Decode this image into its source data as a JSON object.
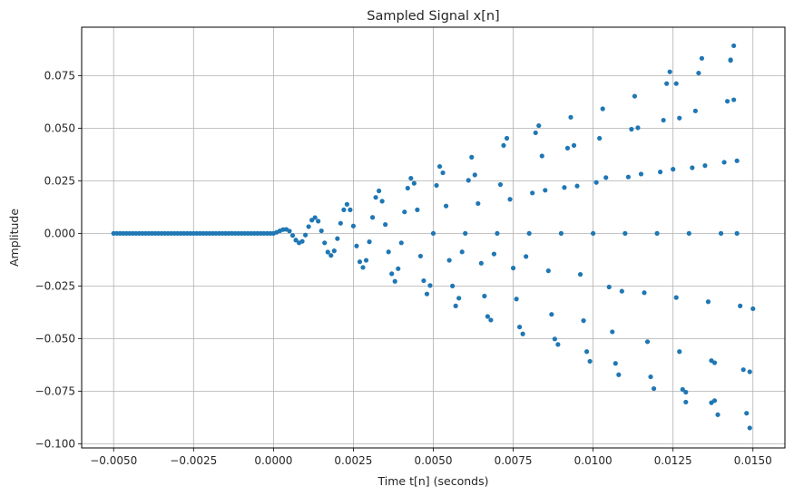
{
  "chart_data": {
    "type": "scatter",
    "title": "Sampled Signal x[n]",
    "xlabel": "Time t[n] (seconds)",
    "ylabel": "Amplitude",
    "xlim": [
      -0.006,
      0.016
    ],
    "ylim": [
      -0.102,
      0.098
    ],
    "grid": true,
    "x_ticks": [
      -0.005,
      -0.0025,
      0.0,
      0.0025,
      0.005,
      0.0075,
      0.01,
      0.0125,
      0.015
    ],
    "x_tick_labels": [
      "−0.0050",
      "−0.0025",
      "0.0000",
      "0.0025",
      "0.0050",
      "0.0075",
      "0.0100",
      "0.0125",
      "0.0150"
    ],
    "y_ticks": [
      -0.1,
      -0.075,
      -0.05,
      -0.025,
      0.0,
      0.025,
      0.05,
      0.075
    ],
    "y_tick_labels": [
      "−0.100",
      "−0.075",
      "−0.050",
      "−0.025",
      "0.000",
      "0.025",
      "0.050",
      "0.075"
    ],
    "marker_color": "#1f77b4",
    "series": [
      {
        "points": [
          [
            -0.005,
            0.0
          ],
          [
            -0.0049,
            0.0
          ],
          [
            -0.0048,
            0.0
          ],
          [
            -0.0047,
            0.0
          ],
          [
            -0.0046,
            0.0
          ],
          [
            -0.0045,
            0.0
          ],
          [
            -0.0044,
            0.0
          ],
          [
            -0.0043,
            0.0
          ],
          [
            -0.0042,
            0.0
          ],
          [
            -0.0041,
            0.0
          ],
          [
            -0.004,
            0.0
          ],
          [
            -0.0039,
            0.0
          ],
          [
            -0.0038,
            0.0
          ],
          [
            -0.0037,
            0.0
          ],
          [
            -0.0036,
            0.0
          ],
          [
            -0.0035,
            0.0
          ],
          [
            -0.0034,
            0.0
          ],
          [
            -0.0033,
            0.0
          ],
          [
            -0.0032,
            0.0
          ],
          [
            -0.0031,
            0.0
          ],
          [
            -0.003,
            0.0
          ],
          [
            -0.0029,
            0.0
          ],
          [
            -0.0028,
            0.0
          ],
          [
            -0.0027,
            0.0
          ],
          [
            -0.0026,
            0.0
          ],
          [
            -0.0025,
            0.0
          ],
          [
            -0.0024,
            0.0
          ],
          [
            -0.0023,
            0.0
          ],
          [
            -0.0022,
            0.0
          ],
          [
            -0.0021,
            0.0
          ],
          [
            -0.002,
            0.0
          ],
          [
            -0.0019,
            0.0
          ],
          [
            -0.0018,
            0.0
          ],
          [
            -0.0017,
            0.0
          ],
          [
            -0.0016,
            0.0
          ],
          [
            -0.0015,
            0.0
          ],
          [
            -0.0014,
            0.0
          ],
          [
            -0.0013,
            0.0
          ],
          [
            -0.0012,
            0.0
          ],
          [
            -0.0011,
            0.0
          ],
          [
            -0.001,
            0.0
          ],
          [
            -0.0009,
            0.0
          ],
          [
            -0.0008,
            0.0
          ],
          [
            -0.0007,
            0.0
          ],
          [
            -0.0006,
            0.0
          ],
          [
            -0.0005,
            0.0
          ],
          [
            -0.0004,
            0.0
          ],
          [
            -0.0003,
            0.0
          ],
          [
            -0.0002,
            0.0
          ],
          [
            -0.0001,
            0.0
          ],
          [
            0.0,
            0.0
          ],
          [
            0.0001,
            0.0005
          ],
          [
            0.0002,
            0.0012
          ],
          [
            0.0003,
            0.0018
          ],
          [
            0.0004,
            0.0019
          ],
          [
            0.0005,
            0.0011
          ],
          [
            0.0006,
            -0.001
          ],
          [
            0.0007,
            -0.0032
          ],
          [
            0.0008,
            -0.0045
          ],
          [
            0.0009,
            -0.0038
          ],
          [
            0.001,
            -0.0008
          ],
          [
            0.0011,
            0.0032
          ],
          [
            0.0012,
            0.0063
          ],
          [
            0.0013,
            0.0075
          ],
          [
            0.0014,
            0.0058
          ],
          [
            0.0015,
            0.0012
          ],
          [
            0.0016,
            -0.0045
          ],
          [
            0.0017,
            -0.0089
          ],
          [
            0.0018,
            -0.0105
          ],
          [
            0.0019,
            -0.0083
          ],
          [
            0.002,
            -0.0025
          ],
          [
            0.0021,
            0.0048
          ],
          [
            0.0022,
            0.0112
          ],
          [
            0.0023,
            0.0138
          ],
          [
            0.0024,
            0.0112
          ],
          [
            0.0025,
            0.0035
          ],
          [
            0.0026,
            -0.006
          ],
          [
            0.0027,
            -0.0135
          ],
          [
            0.0028,
            -0.0162
          ],
          [
            0.0029,
            -0.0128
          ],
          [
            0.003,
            -0.004
          ],
          [
            0.0031,
            0.0076
          ],
          [
            0.0032,
            0.0171
          ],
          [
            0.0033,
            0.0202
          ],
          [
            0.0034,
            0.0153
          ],
          [
            0.0035,
            0.0042
          ],
          [
            0.0036,
            -0.0088
          ],
          [
            0.0037,
            -0.0192
          ],
          [
            0.0038,
            -0.0228
          ],
          [
            0.0039,
            -0.0168
          ],
          [
            0.004,
            -0.0045
          ],
          [
            0.0041,
            0.0102
          ],
          [
            0.0042,
            0.0215
          ],
          [
            0.0043,
            0.0262
          ],
          [
            0.0044,
            0.0238
          ],
          [
            0.0045,
            0.0112
          ],
          [
            0.0046,
            -0.0108
          ],
          [
            0.0047,
            -0.0225
          ],
          [
            0.0048,
            -0.0288
          ],
          [
            0.0049,
            -0.0248
          ],
          [
            0.005,
            0.0
          ],
          [
            0.0051,
            0.0228
          ],
          [
            0.0052,
            0.0318
          ],
          [
            0.0053,
            0.0288
          ],
          [
            0.0054,
            0.013
          ],
          [
            0.0055,
            -0.0128
          ],
          [
            0.0056,
            -0.025
          ],
          [
            0.0057,
            -0.0345
          ],
          [
            0.0058,
            -0.0308
          ],
          [
            0.0059,
            -0.0088
          ],
          [
            0.006,
            0.0
          ],
          [
            0.0061,
            0.0252
          ],
          [
            0.0062,
            0.0362
          ],
          [
            0.0063,
            0.0278
          ],
          [
            0.0064,
            0.0142
          ],
          [
            0.0065,
            -0.0142
          ],
          [
            0.0066,
            -0.0298
          ],
          [
            0.0067,
            -0.0395
          ],
          [
            0.0068,
            -0.0412
          ],
          [
            0.0069,
            -0.0098
          ],
          [
            0.007,
            0.0
          ],
          [
            0.0071,
            0.0232
          ],
          [
            0.0072,
            0.0418
          ],
          [
            0.0073,
            0.0452
          ],
          [
            0.0074,
            0.0162
          ],
          [
            0.0075,
            -0.0165
          ],
          [
            0.0076,
            -0.0312
          ],
          [
            0.0077,
            -0.0445
          ],
          [
            0.0078,
            -0.0478
          ],
          [
            0.0079,
            -0.011
          ],
          [
            0.008,
            0.0
          ],
          [
            0.0081,
            0.0192
          ],
          [
            0.0082,
            0.0478
          ],
          [
            0.0083,
            0.0512
          ],
          [
            0.0084,
            0.0368
          ],
          [
            0.0085,
            0.0205
          ],
          [
            0.0086,
            -0.0178
          ],
          [
            0.0087,
            -0.0385
          ],
          [
            0.0088,
            -0.0502
          ],
          [
            0.0089,
            -0.0528
          ],
          [
            0.009,
            0.0
          ],
          [
            0.0091,
            0.0218
          ],
          [
            0.0092,
            0.0405
          ],
          [
            0.0093,
            0.0552
          ],
          [
            0.0094,
            0.0418
          ],
          [
            0.0095,
            0.0225
          ],
          [
            0.0096,
            -0.0195
          ],
          [
            0.0097,
            -0.0415
          ],
          [
            0.0098,
            -0.0562
          ],
          [
            0.0099,
            -0.0608
          ],
          [
            0.01,
            0.0
          ],
          [
            0.0101,
            0.0242
          ],
          [
            0.0102,
            0.0452
          ],
          [
            0.0103,
            0.0592
          ],
          [
            0.0104,
            0.0265
          ],
          [
            0.0105,
            -0.0255
          ],
          [
            0.0106,
            -0.0468
          ],
          [
            0.0107,
            -0.0618
          ],
          [
            0.0108,
            -0.0672
          ],
          [
            0.0109,
            -0.0275
          ],
          [
            0.011,
            0.0
          ],
          [
            0.0111,
            0.0268
          ],
          [
            0.0112,
            0.0495
          ],
          [
            0.0113,
            0.0652
          ],
          [
            0.0114,
            0.0502
          ],
          [
            0.0115,
            0.0282
          ],
          [
            0.0116,
            -0.0282
          ],
          [
            0.0117,
            -0.0515
          ],
          [
            0.0118,
            -0.0682
          ],
          [
            0.0119,
            -0.0738
          ],
          [
            0.012,
            0.0
          ],
          [
            0.0121,
            0.0292
          ],
          [
            0.0122,
            0.0538
          ],
          [
            0.0123,
            0.0712
          ],
          [
            0.0124,
            0.0768
          ],
          [
            0.0125,
            0.0305
          ],
          [
            0.0126,
            -0.0305
          ],
          [
            0.0127,
            -0.0562
          ],
          [
            0.0128,
            -0.0742
          ],
          [
            0.0129,
            -0.0802
          ],
          [
            0.013,
            0.0
          ],
          [
            0.0131,
            0.0312
          ],
          [
            0.0132,
            0.0582
          ],
          [
            0.0133,
            0.0762
          ],
          [
            0.0134,
            0.0832
          ],
          [
            0.0135,
            0.0322
          ],
          [
            0.0136,
            -0.0325
          ],
          [
            0.0137,
            -0.0605
          ],
          [
            0.0138,
            -0.0795
          ],
          [
            0.0139,
            -0.0862
          ],
          [
            0.014,
            0.0
          ],
          [
            0.0141,
            0.0338
          ],
          [
            0.0142,
            0.0628
          ],
          [
            0.0143,
            0.0822
          ],
          [
            0.0144,
            0.0892
          ],
          [
            0.0145,
            0.0345
          ],
          [
            0.0146,
            -0.0345
          ],
          [
            0.0147,
            -0.0648
          ],
          [
            0.0148,
            -0.0855
          ],
          [
            0.0149,
            -0.0925
          ],
          [
            0.015,
            -0.0358
          ],
          [
            0.0149,
            -0.0658
          ],
          [
            0.0143,
            0.0825
          ],
          [
            0.0144,
            0.0635
          ],
          [
            0.0145,
            0.0
          ],
          [
            0.0137,
            -0.0805
          ],
          [
            0.0138,
            -0.0615
          ],
          [
            0.0129,
            -0.0755
          ],
          [
            0.0126,
            0.0712
          ],
          [
            0.0127,
            0.0548
          ]
        ]
      }
    ]
  }
}
